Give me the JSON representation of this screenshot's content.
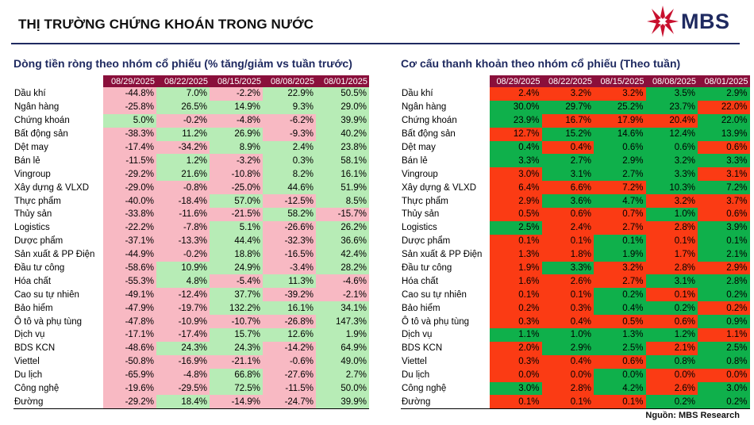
{
  "header": {
    "title": "THỊ TRƯỜNG CHỨNG KHOÁN TRONG NƯỚC",
    "logo_text": "MBS",
    "line_color": "#1f2a60"
  },
  "colors": {
    "header_bg": "#8a0f3b",
    "left_positive": "#b7ecb6",
    "left_negative": "#f8b9c3",
    "right_high": "#0fb04b",
    "right_low": "#fb3b14",
    "title_color": "#1f2a60"
  },
  "left_table": {
    "title": "Dòng tiền ròng theo nhóm cổ phiếu (% tăng/giảm vs tuần trước)",
    "columns": [
      "08/29/2025",
      "08/22/2025",
      "08/15/2025",
      "08/08/2025",
      "08/01/2025"
    ],
    "rows": [
      {
        "label": "Dầu khí",
        "values": [
          "-44.8%",
          "7.0%",
          "-2.2%",
          "22.9%",
          "50.5%"
        ]
      },
      {
        "label": "Ngân hàng",
        "values": [
          "-25.8%",
          "26.5%",
          "14.9%",
          "9.3%",
          "29.0%"
        ]
      },
      {
        "label": "Chứng khoán",
        "values": [
          "5.0%",
          "-0.2%",
          "-4.8%",
          "-6.2%",
          "39.9%"
        ]
      },
      {
        "label": "Bất động sản",
        "values": [
          "-38.3%",
          "11.2%",
          "26.9%",
          "-9.3%",
          "40.2%"
        ]
      },
      {
        "label": "Dệt may",
        "values": [
          "-17.4%",
          "-34.2%",
          "8.9%",
          "2.4%",
          "23.8%"
        ]
      },
      {
        "label": "Bán lẻ",
        "values": [
          "-11.5%",
          "1.2%",
          "-3.2%",
          "0.3%",
          "58.1%"
        ]
      },
      {
        "label": "Vingroup",
        "values": [
          "-29.2%",
          "21.6%",
          "-10.8%",
          "8.2%",
          "16.1%"
        ]
      },
      {
        "label": "Xây dựng & VLXD",
        "values": [
          "-29.0%",
          "-0.8%",
          "-25.0%",
          "44.6%",
          "51.9%"
        ]
      },
      {
        "label": "Thực phẩm",
        "values": [
          "-40.0%",
          "-18.4%",
          "57.0%",
          "-12.5%",
          "8.5%"
        ]
      },
      {
        "label": "Thủy sản",
        "values": [
          "-33.8%",
          "-11.6%",
          "-21.5%",
          "58.2%",
          "-15.7%"
        ]
      },
      {
        "label": "Logistics",
        "values": [
          "-22.2%",
          "-7.8%",
          "5.1%",
          "-26.6%",
          "26.2%"
        ]
      },
      {
        "label": "Dược phẩm",
        "values": [
          "-37.1%",
          "-13.3%",
          "44.4%",
          "-32.3%",
          "36.6%"
        ]
      },
      {
        "label": "Sản xuất & PP Điện",
        "values": [
          "-44.9%",
          "-0.2%",
          "18.8%",
          "-16.5%",
          "42.4%"
        ]
      },
      {
        "label": "Đầu tư công",
        "values": [
          "-58.6%",
          "10.9%",
          "24.9%",
          "-3.4%",
          "28.2%"
        ]
      },
      {
        "label": "Hóa chất",
        "values": [
          "-55.3%",
          "4.8%",
          "-5.4%",
          "11.3%",
          "-4.6%"
        ]
      },
      {
        "label": "Cao su tự nhiên",
        "values": [
          "-49.1%",
          "-12.4%",
          "37.7%",
          "-39.2%",
          "-2.1%"
        ]
      },
      {
        "label": "Bảo hiểm",
        "values": [
          "-47.9%",
          "-19.7%",
          "132.2%",
          "16.1%",
          "34.1%"
        ]
      },
      {
        "label": "Ô tô và phụ tùng",
        "values": [
          "-47.8%",
          "-10.9%",
          "-10.7%",
          "-26.8%",
          "147.3%"
        ]
      },
      {
        "label": "Dịch vụ",
        "values": [
          "-17.1%",
          "-17.4%",
          "15.7%",
          "12.6%",
          "1.9%"
        ]
      },
      {
        "label": "BDS KCN",
        "values": [
          "-48.6%",
          "24.3%",
          "24.3%",
          "-14.2%",
          "64.9%"
        ]
      },
      {
        "label": "Viettel",
        "values": [
          "-50.8%",
          "-16.9%",
          "-21.1%",
          "-0.6%",
          "49.0%"
        ]
      },
      {
        "label": "Du lịch",
        "values": [
          "-65.9%",
          "-4.8%",
          "66.8%",
          "-27.6%",
          "2.7%"
        ]
      },
      {
        "label": "Công nghệ",
        "values": [
          "-19.6%",
          "-29.5%",
          "72.5%",
          "-11.5%",
          "50.0%"
        ]
      },
      {
        "label": "Đường",
        "values": [
          "-29.2%",
          "18.4%",
          "-14.9%",
          "-24.7%",
          "39.9%"
        ]
      }
    ]
  },
  "right_table": {
    "title": "Cơ cấu thanh khoản theo nhóm cổ phiếu (Theo tuần)",
    "columns": [
      "08/29/2025",
      "08/22/2025",
      "08/15/2025",
      "08/08/2025",
      "08/01/2025"
    ],
    "rows": [
      {
        "label": "Dầu khí",
        "values": [
          "2.4%",
          "3.2%",
          "3.2%",
          "3.5%",
          "2.9%"
        ],
        "cells": [
          "lo",
          "lo",
          "lo",
          "hi",
          "hi"
        ]
      },
      {
        "label": "Ngân hàng",
        "values": [
          "30.0%",
          "29.7%",
          "25.2%",
          "23.7%",
          "22.0%"
        ],
        "cells": [
          "hi",
          "hi",
          "hi",
          "hi",
          "lo"
        ]
      },
      {
        "label": "Chứng khoán",
        "values": [
          "23.9%",
          "16.7%",
          "17.9%",
          "20.4%",
          "22.0%"
        ],
        "cells": [
          "hi",
          "lo",
          "lo",
          "lo",
          "hi"
        ]
      },
      {
        "label": "Bất động sản",
        "values": [
          "12.7%",
          "15.2%",
          "14.6%",
          "12.4%",
          "13.9%"
        ],
        "cells": [
          "lo",
          "hi",
          "hi",
          "hi",
          "hi"
        ]
      },
      {
        "label": "Dệt may",
        "values": [
          "0.4%",
          "0.4%",
          "0.6%",
          "0.6%",
          "0.6%"
        ],
        "cells": [
          "hi",
          "lo",
          "hi",
          "hi",
          "lo"
        ]
      },
      {
        "label": "Bán lẻ",
        "values": [
          "3.3%",
          "2.7%",
          "2.9%",
          "3.2%",
          "3.3%"
        ],
        "cells": [
          "hi",
          "hi",
          "hi",
          "hi",
          "hi"
        ]
      },
      {
        "label": "Vingroup",
        "values": [
          "3.0%",
          "3.1%",
          "2.7%",
          "3.3%",
          "3.1%"
        ],
        "cells": [
          "lo",
          "hi",
          "hi",
          "hi",
          "lo"
        ]
      },
      {
        "label": "Xây dựng & VLXD",
        "values": [
          "6.4%",
          "6.6%",
          "7.2%",
          "10.3%",
          "7.2%"
        ],
        "cells": [
          "lo",
          "lo",
          "lo",
          "hi",
          "hi"
        ]
      },
      {
        "label": "Thực phẩm",
        "values": [
          "2.9%",
          "3.6%",
          "4.7%",
          "3.2%",
          "3.7%"
        ],
        "cells": [
          "lo",
          "hi",
          "hi",
          "lo",
          "lo"
        ]
      },
      {
        "label": "Thủy sản",
        "values": [
          "0.5%",
          "0.6%",
          "0.7%",
          "1.0%",
          "0.6%"
        ],
        "cells": [
          "lo",
          "lo",
          "lo",
          "hi",
          "lo"
        ]
      },
      {
        "label": "Logistics",
        "values": [
          "2.5%",
          "2.4%",
          "2.7%",
          "2.8%",
          "3.9%"
        ],
        "cells": [
          "hi",
          "lo",
          "lo",
          "lo",
          "hi"
        ]
      },
      {
        "label": "Dược phẩm",
        "values": [
          "0.1%",
          "0.1%",
          "0.1%",
          "0.1%",
          "0.1%"
        ],
        "cells": [
          "lo",
          "lo",
          "hi",
          "lo",
          "hi"
        ]
      },
      {
        "label": "Sản xuất & PP Điện",
        "values": [
          "1.3%",
          "1.8%",
          "1.9%",
          "1.7%",
          "2.1%"
        ],
        "cells": [
          "lo",
          "lo",
          "hi",
          "lo",
          "hi"
        ]
      },
      {
        "label": "Đầu tư công",
        "values": [
          "1.9%",
          "3.3%",
          "3.2%",
          "2.8%",
          "2.9%"
        ],
        "cells": [
          "lo",
          "hi",
          "lo",
          "lo",
          "lo"
        ]
      },
      {
        "label": "Hóa chất",
        "values": [
          "1.6%",
          "2.6%",
          "2.7%",
          "3.1%",
          "2.8%"
        ],
        "cells": [
          "lo",
          "lo",
          "lo",
          "hi",
          "hi"
        ]
      },
      {
        "label": "Cao su tự nhiên",
        "values": [
          "0.1%",
          "0.1%",
          "0.2%",
          "0.1%",
          "0.2%"
        ],
        "cells": [
          "lo",
          "lo",
          "hi",
          "lo",
          "hi"
        ]
      },
      {
        "label": "Bảo hiểm",
        "values": [
          "0.2%",
          "0.3%",
          "0.4%",
          "0.2%",
          "0.2%"
        ],
        "cells": [
          "lo",
          "lo",
          "hi",
          "hi",
          "lo"
        ]
      },
      {
        "label": "Ô tô và phụ tùng",
        "values": [
          "0.3%",
          "0.4%",
          "0.5%",
          "0.6%",
          "0.9%"
        ],
        "cells": [
          "lo",
          "lo",
          "lo",
          "lo",
          "hi"
        ]
      },
      {
        "label": "Dịch vụ",
        "values": [
          "1.1%",
          "1.0%",
          "1.3%",
          "1.2%",
          "1.1%"
        ],
        "cells": [
          "hi",
          "hi",
          "hi",
          "hi",
          "lo"
        ]
      },
      {
        "label": "BDS KCN",
        "values": [
          "2.0%",
          "2.9%",
          "2.5%",
          "2.1%",
          "2.5%"
        ],
        "cells": [
          "lo",
          "hi",
          "hi",
          "lo",
          "hi"
        ]
      },
      {
        "label": "Viettel",
        "values": [
          "0.3%",
          "0.4%",
          "0.6%",
          "0.8%",
          "0.8%"
        ],
        "cells": [
          "lo",
          "lo",
          "lo",
          "hi",
          "hi"
        ]
      },
      {
        "label": "Du lịch",
        "values": [
          "0.0%",
          "0.0%",
          "0.0%",
          "0.0%",
          "0.0%"
        ],
        "cells": [
          "lo",
          "lo",
          "hi",
          "lo",
          "lo"
        ]
      },
      {
        "label": "Công nghệ",
        "values": [
          "3.0%",
          "2.8%",
          "4.2%",
          "2.6%",
          "3.0%"
        ],
        "cells": [
          "hi",
          "lo",
          "hi",
          "lo",
          "hi"
        ]
      },
      {
        "label": "Đường",
        "values": [
          "0.1%",
          "0.1%",
          "0.1%",
          "0.2%",
          "0.2%"
        ],
        "cells": [
          "lo",
          "lo",
          "lo",
          "hi",
          "hi"
        ]
      }
    ]
  },
  "footer": {
    "source": "Nguồn: MBS Research"
  }
}
